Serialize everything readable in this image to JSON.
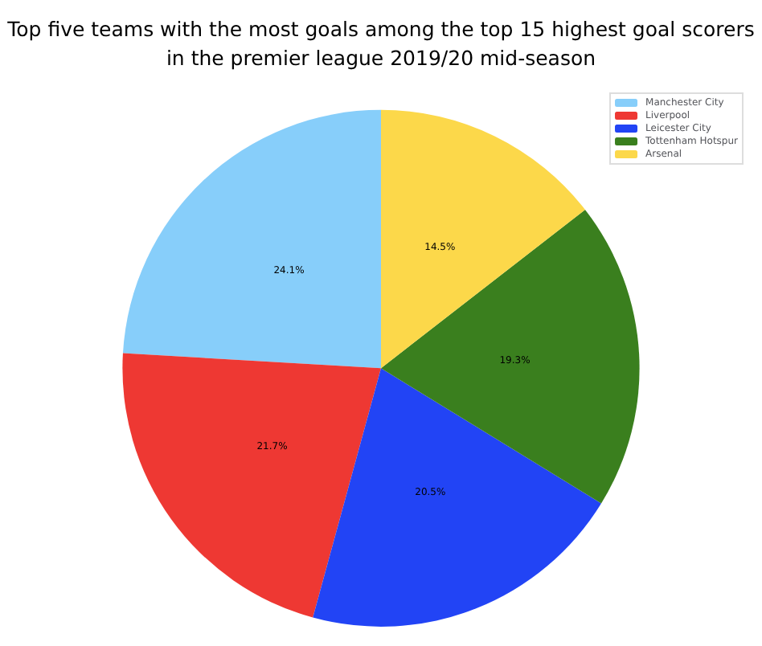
{
  "chart_data": {
    "type": "pie",
    "title": "Top five teams with the most goals among the top 15 highest goal scorers\nin the premier league 2019/20 mid-season",
    "categories": [
      "Manchester City",
      "Liverpool",
      "Leicester City",
      "Tottenham Hotspur",
      "Arsenal"
    ],
    "values": [
      24.1,
      21.7,
      20.5,
      19.3,
      14.5
    ],
    "value_labels": [
      "24.1%",
      "21.7%",
      "20.5%",
      "19.3%",
      "14.5%"
    ],
    "colors": [
      "#87cefa",
      "#ee3833",
      "#2244f5",
      "#3a7f1e",
      "#fcd84a"
    ],
    "legend": "top right"
  }
}
